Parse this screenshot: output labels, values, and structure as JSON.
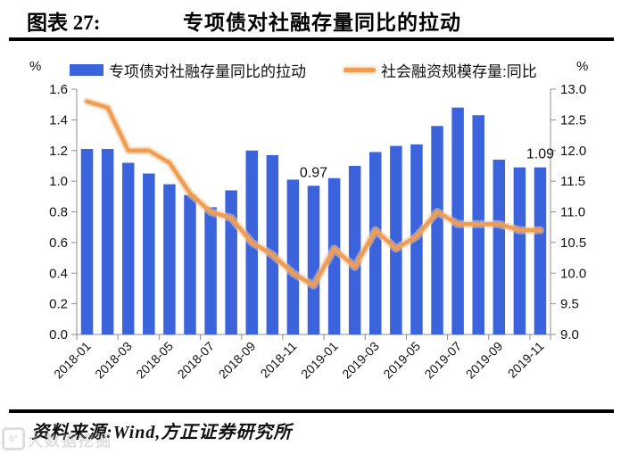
{
  "header": {
    "label": "图表 27:",
    "title": "专项债对社融存量同比的拉动"
  },
  "footer": {
    "source": "资料来源:Wind,方正证券研究所"
  },
  "watermark": {
    "logo": "6°",
    "text": "大数据挖掘"
  },
  "chart_data": {
    "type": "bar+line",
    "categories": [
      "2018-01",
      "2018-02",
      "2018-03",
      "2018-04",
      "2018-05",
      "2018-06",
      "2018-07",
      "2018-08",
      "2018-09",
      "2018-10",
      "2018-11",
      "2018-12",
      "2019-01",
      "2019-02",
      "2019-03",
      "2019-04",
      "2019-05",
      "2019-06",
      "2019-07",
      "2019-08",
      "2019-09",
      "2019-10",
      "2019-11"
    ],
    "x_tick_labels": [
      "2018-01",
      "2018-03",
      "2018-05",
      "2018-07",
      "2018-09",
      "2018-11",
      "2019-01",
      "2019-03",
      "2019-05",
      "2019-07",
      "2019-09",
      "2019-11"
    ],
    "series": [
      {
        "name": "专项债对社融存量同比的拉动",
        "type": "bar",
        "axis": "left",
        "color": "#3B63DB",
        "values": [
          1.21,
          1.21,
          1.12,
          1.05,
          0.98,
          0.91,
          0.83,
          0.94,
          1.2,
          1.17,
          1.01,
          0.97,
          1.02,
          1.1,
          1.19,
          1.23,
          1.24,
          1.36,
          1.48,
          1.43,
          1.14,
          1.09,
          1.09
        ]
      },
      {
        "name": "社会融资规模存量:同比",
        "type": "line",
        "axis": "right",
        "color": "#EE9D52",
        "glow_color": "#F7C79B",
        "values": [
          12.8,
          12.7,
          12.0,
          12.0,
          11.8,
          11.3,
          11.0,
          10.9,
          10.5,
          10.3,
          10.0,
          9.8,
          10.4,
          10.1,
          10.7,
          10.4,
          10.6,
          11.0,
          10.8,
          10.8,
          10.8,
          10.7,
          10.7
        ]
      }
    ],
    "left_axis": {
      "min": 0.0,
      "max": 1.6,
      "step": 0.2,
      "unit": "%"
    },
    "right_axis": {
      "min": 9.0,
      "max": 13.0,
      "step": 0.5,
      "unit": "%"
    },
    "annotations": [
      {
        "index": 11,
        "text": "0.97"
      },
      {
        "index": 22,
        "text": "1.09"
      }
    ],
    "grid": false,
    "legend_position": "top",
    "axis_color": "#8c8c8c",
    "tick_text_color": "#111111"
  }
}
